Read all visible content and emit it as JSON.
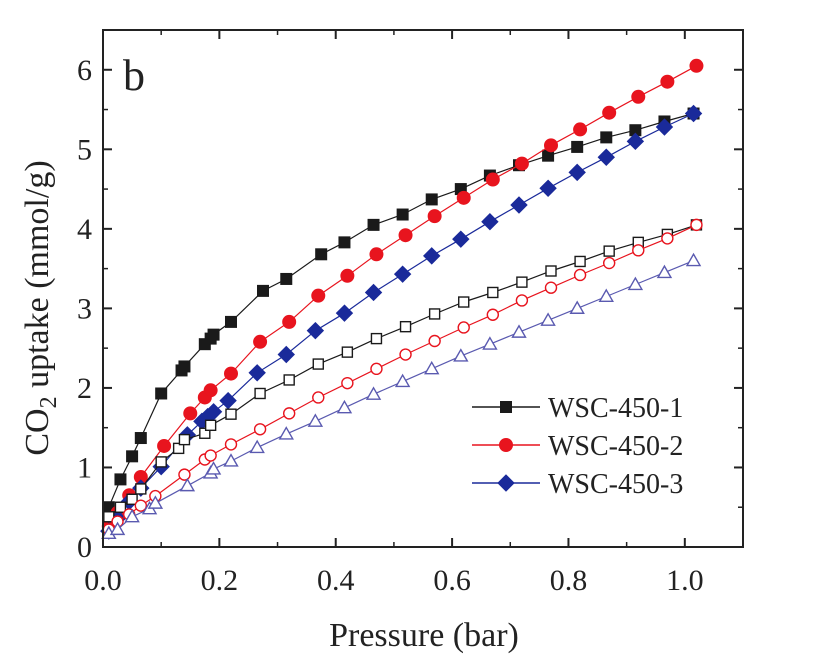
{
  "chart_data": {
    "type": "scatter",
    "panel_label": "b",
    "title": "",
    "xlabel": "Pressure (bar)",
    "ylabel": {
      "prefix": "CO",
      "subscript": "2",
      "suffix": " uptake (mmol/g)"
    },
    "xlim": [
      0.0,
      1.1
    ],
    "ylim": [
      0,
      6.5
    ],
    "x_ticks": [
      "0.0",
      "0.2",
      "0.4",
      "0.6",
      "0.8",
      "1.0"
    ],
    "y_ticks": [
      "0",
      "1",
      "2",
      "3",
      "4",
      "5",
      "6"
    ],
    "grid": false,
    "legend_position": "lower-right",
    "series": [
      {
        "name": "WSC-450-1",
        "color": "#1a1a1a",
        "marker": "square",
        "filled": true,
        "in_legend": true,
        "x": [
          0.01,
          0.03,
          0.05,
          0.065,
          0.1,
          0.135,
          0.14,
          0.175,
          0.185,
          0.19,
          0.22,
          0.275,
          0.315,
          0.375,
          0.415,
          0.465,
          0.515,
          0.565,
          0.615,
          0.665,
          0.715,
          0.765,
          0.815,
          0.865,
          0.915,
          0.965,
          1.015
        ],
        "y": [
          0.5,
          0.85,
          1.14,
          1.37,
          1.93,
          2.22,
          2.27,
          2.55,
          2.62,
          2.67,
          2.83,
          3.22,
          3.37,
          3.68,
          3.83,
          4.05,
          4.18,
          4.37,
          4.5,
          4.67,
          4.8,
          4.92,
          5.03,
          5.15,
          5.24,
          5.35,
          5.45
        ]
      },
      {
        "name": "WSC-450-2",
        "color": "#e8141e",
        "marker": "circle",
        "filled": true,
        "in_legend": true,
        "x": [
          0.01,
          0.025,
          0.045,
          0.065,
          0.105,
          0.15,
          0.175,
          0.185,
          0.22,
          0.27,
          0.32,
          0.37,
          0.42,
          0.47,
          0.52,
          0.57,
          0.62,
          0.67,
          0.72,
          0.77,
          0.82,
          0.87,
          0.92,
          0.97,
          1.02
        ],
        "y": [
          0.26,
          0.43,
          0.65,
          0.88,
          1.27,
          1.68,
          1.88,
          1.97,
          2.18,
          2.58,
          2.83,
          3.16,
          3.41,
          3.68,
          3.92,
          4.16,
          4.39,
          4.62,
          4.82,
          5.05,
          5.25,
          5.46,
          5.66,
          5.85,
          6.05
        ]
      },
      {
        "name": "WSC-450-3",
        "color": "#1a2a9a",
        "marker": "diamond",
        "filled": true,
        "in_legend": true,
        "x": [
          0.01,
          0.025,
          0.045,
          0.065,
          0.1,
          0.145,
          0.17,
          0.18,
          0.19,
          0.215,
          0.265,
          0.315,
          0.365,
          0.415,
          0.465,
          0.515,
          0.565,
          0.615,
          0.665,
          0.715,
          0.765,
          0.815,
          0.865,
          0.915,
          0.965,
          1.015
        ],
        "y": [
          0.2,
          0.36,
          0.57,
          0.74,
          1.01,
          1.41,
          1.58,
          1.64,
          1.7,
          1.84,
          2.19,
          2.42,
          2.72,
          2.94,
          3.2,
          3.43,
          3.66,
          3.87,
          4.09,
          4.3,
          4.51,
          4.71,
          4.9,
          5.1,
          5.28,
          5.45
        ]
      },
      {
        "name": "WSC-450-1 (open)",
        "color": "#1a1a1a",
        "marker": "square",
        "filled": false,
        "in_legend": false,
        "x": [
          0.01,
          0.03,
          0.05,
          0.065,
          0.1,
          0.13,
          0.14,
          0.175,
          0.185,
          0.22,
          0.27,
          0.32,
          0.37,
          0.42,
          0.47,
          0.52,
          0.57,
          0.62,
          0.67,
          0.72,
          0.77,
          0.82,
          0.87,
          0.92,
          0.97,
          1.02
        ],
        "y": [
          0.38,
          0.5,
          0.6,
          0.73,
          1.07,
          1.24,
          1.35,
          1.43,
          1.53,
          1.67,
          1.93,
          2.1,
          2.3,
          2.45,
          2.62,
          2.77,
          2.93,
          3.08,
          3.2,
          3.33,
          3.47,
          3.59,
          3.72,
          3.83,
          3.93,
          4.05
        ]
      },
      {
        "name": "WSC-450-2 (open)",
        "color": "#e8141e",
        "marker": "circle",
        "filled": false,
        "in_legend": false,
        "x": [
          0.01,
          0.025,
          0.045,
          0.065,
          0.09,
          0.14,
          0.175,
          0.185,
          0.22,
          0.27,
          0.32,
          0.37,
          0.42,
          0.47,
          0.52,
          0.57,
          0.62,
          0.67,
          0.72,
          0.77,
          0.82,
          0.87,
          0.92,
          0.97,
          1.02
        ],
        "y": [
          0.22,
          0.32,
          0.41,
          0.52,
          0.64,
          0.91,
          1.1,
          1.15,
          1.29,
          1.48,
          1.68,
          1.88,
          2.06,
          2.24,
          2.42,
          2.59,
          2.76,
          2.92,
          3.1,
          3.26,
          3.42,
          3.57,
          3.73,
          3.88,
          4.05
        ]
      },
      {
        "name": "WSC-450-3 (open)",
        "color": "#5a5ab0",
        "marker": "triangle",
        "filled": false,
        "in_legend": false,
        "x": [
          0.01,
          0.025,
          0.05,
          0.08,
          0.09,
          0.145,
          0.185,
          0.19,
          0.22,
          0.265,
          0.315,
          0.365,
          0.415,
          0.465,
          0.515,
          0.565,
          0.615,
          0.665,
          0.715,
          0.765,
          0.815,
          0.865,
          0.915,
          0.965,
          1.015
        ],
        "y": [
          0.17,
          0.22,
          0.38,
          0.48,
          0.55,
          0.77,
          0.93,
          0.98,
          1.08,
          1.25,
          1.42,
          1.58,
          1.75,
          1.92,
          2.08,
          2.24,
          2.4,
          2.55,
          2.7,
          2.85,
          3.0,
          3.15,
          3.3,
          3.45,
          3.6
        ]
      }
    ]
  }
}
